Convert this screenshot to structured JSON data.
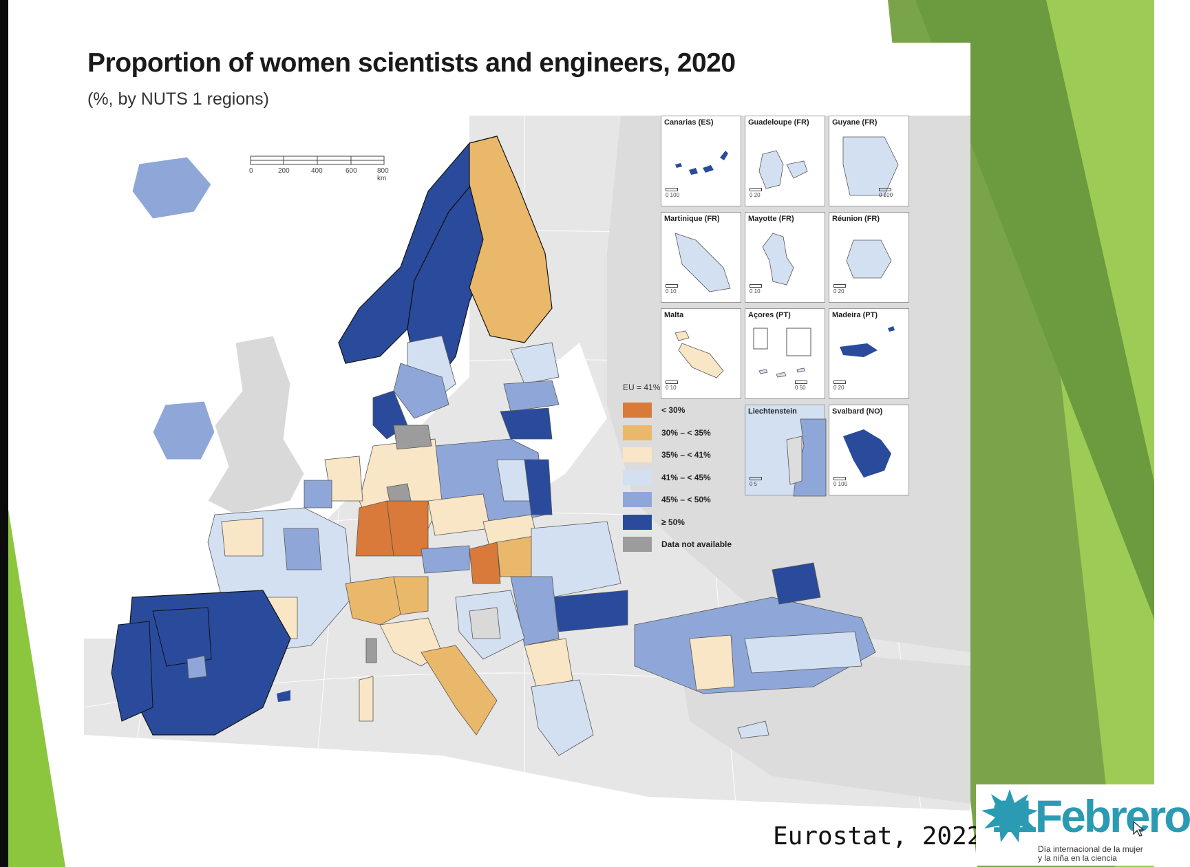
{
  "title": "Proportion of women scientists and engineers, 2020",
  "subtitle": "(%, by NUTS 1 regions)",
  "scale_bar": {
    "ticks": [
      "0",
      "200",
      "400",
      "600",
      "800 km"
    ]
  },
  "legend": {
    "title": "EU = 41%",
    "items": [
      {
        "label": "< 30%",
        "color": "#d97a3a"
      },
      {
        "label": "30% – < 35%",
        "color": "#eab86a"
      },
      {
        "label": "35% – < 41%",
        "color": "#f8e6c6"
      },
      {
        "label": "41% – < 45%",
        "color": "#d3e0f2"
      },
      {
        "label": "45% – < 50%",
        "color": "#8ea7d8"
      },
      {
        "label": "≥ 50%",
        "color": "#2a4b9c"
      },
      {
        "label": "Data not available",
        "color": "#9c9c9c"
      }
    ]
  },
  "insets": [
    {
      "name": "Canarias (ES)",
      "scale": "0   100"
    },
    {
      "name": "Guadeloupe (FR)",
      "scale": "0   20"
    },
    {
      "name": "Guyane (FR)",
      "scale": "0   100"
    },
    {
      "name": "Martinique (FR)",
      "scale": "0   10"
    },
    {
      "name": "Mayotte (FR)",
      "scale": "0   10"
    },
    {
      "name": "Réunion (FR)",
      "scale": "0   20"
    },
    {
      "name": "Malta",
      "scale": "0   10"
    },
    {
      "name": "Açores (PT)",
      "scale": "0   50"
    },
    {
      "name": "Madeira (PT)",
      "scale": "0   20"
    },
    {
      "name": "Liechtenstein",
      "scale": "0   5"
    },
    {
      "name": "Svalbard (NO)",
      "scale": "0   100"
    }
  ],
  "source": "Eurostat, 2022",
  "logo": {
    "main": "11Febrero",
    "line1": "Día internacional de la mujer",
    "line2": "y la niña en la ciencia"
  },
  "colors": {
    "accent_green": "#8cc63f",
    "dark_green": "#5f8a3a"
  }
}
